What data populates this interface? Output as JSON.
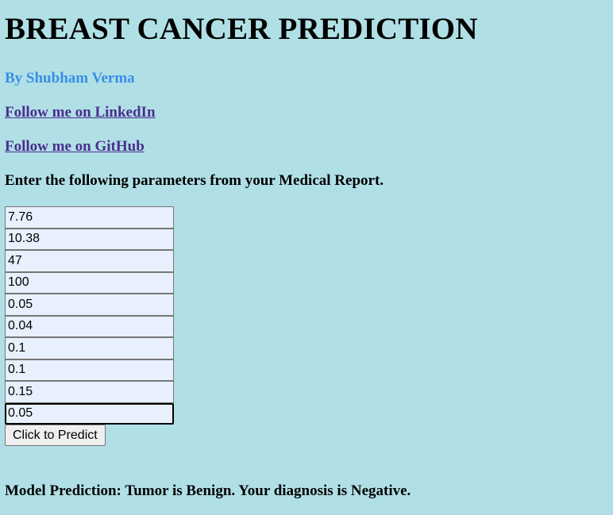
{
  "header": {
    "title": "BREAST CANCER PREDICTION",
    "author": "By Shubham Verma"
  },
  "links": {
    "linkedin": "Follow me on LinkedIn",
    "github": "Follow me on GitHub"
  },
  "form": {
    "instructions": "Enter the following parameters from your Medical Report.",
    "fields": [
      {
        "value": "7.76"
      },
      {
        "value": "10.38"
      },
      {
        "value": "47"
      },
      {
        "value": "100"
      },
      {
        "value": "0.05"
      },
      {
        "value": "0.04"
      },
      {
        "value": "0.1"
      },
      {
        "value": "0.1"
      },
      {
        "value": "0.15"
      },
      {
        "value": "0.05"
      }
    ],
    "submit_label": "Click to Predict"
  },
  "result": {
    "prediction": "Model Prediction: Tumor is Benign. Your diagnosis is Negative."
  }
}
